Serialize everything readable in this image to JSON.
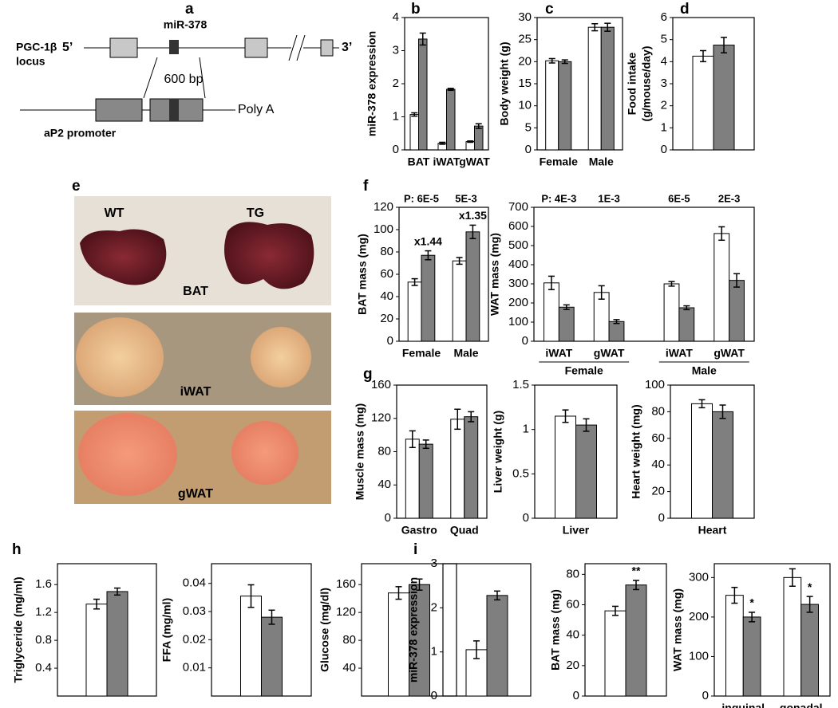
{
  "panel_labels": [
    "a",
    "b",
    "c",
    "d",
    "e",
    "f",
    "g",
    "h",
    "i"
  ],
  "diagram": {
    "locus_name": "PGC-1β",
    "five_prime": "5’",
    "locus": "locus",
    "mirna": "miR-378",
    "three_prime": "3’",
    "fragment": "600 bp",
    "promoter": "aP2 promoter",
    "polya": "Poly A"
  },
  "photos": {
    "wt": "WT",
    "tg": "TG",
    "rows": [
      "BAT",
      "iWAT",
      "gWAT"
    ]
  },
  "chart_data": [
    {
      "type": "bar",
      "y_label": [
        "miR-378 expression"
      ],
      "categories": [
        "BAT",
        "iWAT",
        "gWAT"
      ],
      "series": [
        {
          "color": "#ffffff",
          "values": [
            1.07,
            0.2,
            0.25
          ],
          "errors": [
            0.05,
            0.03,
            0.02
          ]
        },
        {
          "color": "#7f7f7f",
          "values": [
            3.35,
            1.83,
            0.72
          ],
          "errors": [
            0.18,
            0.03,
            0.07
          ]
        }
      ],
      "ylim": [
        0,
        4
      ],
      "yticks": [
        0,
        1,
        2,
        3,
        4
      ]
    },
    {
      "type": "bar",
      "y_label": [
        "Body weight (g)"
      ],
      "categories": [
        "Female",
        "Male"
      ],
      "series": [
        {
          "color": "#ffffff",
          "values": [
            20.2,
            27.8
          ],
          "errors": [
            0.5,
            0.8
          ]
        },
        {
          "color": "#7f7f7f",
          "values": [
            20.0,
            27.8
          ],
          "errors": [
            0.4,
            0.9
          ]
        }
      ],
      "ylim": [
        0,
        30
      ],
      "yticks": [
        0,
        5,
        10,
        15,
        20,
        25,
        30
      ]
    },
    {
      "type": "bar",
      "y_label": [
        "Food intake",
        "(g/mouse/day)"
      ],
      "categories": [
        null
      ],
      "series": [
        {
          "color": "#ffffff",
          "values": [
            4.25
          ],
          "errors": [
            0.25
          ]
        },
        {
          "color": "#7f7f7f",
          "values": [
            4.75
          ],
          "errors": [
            0.35
          ]
        }
      ],
      "ylim": [
        0,
        6
      ],
      "yticks": [
        0,
        1,
        2,
        3,
        4,
        5,
        6
      ]
    },
    {
      "type": "bar",
      "y_label": [
        "BAT mass (mg)"
      ],
      "categories": [
        "Female",
        "Male"
      ],
      "series": [
        {
          "color": "#ffffff",
          "values": [
            53,
            72
          ],
          "errors": [
            3,
            3
          ]
        },
        {
          "color": "#7f7f7f",
          "values": [
            77,
            98
          ],
          "errors": [
            4,
            6
          ]
        }
      ],
      "ylim": [
        0,
        120
      ],
      "yticks": [
        0,
        20,
        40,
        60,
        80,
        100,
        120
      ],
      "p_values": [
        "P: 6E-5",
        "5E-3"
      ],
      "marks": [
        "x1.44",
        "x1.35"
      ]
    },
    {
      "type": "bar",
      "y_label": [
        "WAT mass (mg)"
      ],
      "categories": [
        "iWAT",
        "gWAT",
        "iWAT",
        "gWAT"
      ],
      "groups": [
        "Female",
        "Male"
      ],
      "series": [
        {
          "color": "#ffffff",
          "values": [
            305,
            255,
            300,
            563
          ],
          "errors": [
            35,
            35,
            12,
            35
          ]
        },
        {
          "color": "#7f7f7f",
          "values": [
            178,
            103,
            175,
            318
          ],
          "errors": [
            12,
            10,
            10,
            35
          ]
        }
      ],
      "ylim": [
        0,
        700
      ],
      "yticks": [
        0,
        100,
        200,
        300,
        400,
        500,
        600,
        700
      ],
      "p_values": [
        "P: 4E-3",
        "1E-3",
        "6E-5",
        "2E-3"
      ]
    },
    {
      "type": "bar",
      "y_label": [
        "Muscle mass (mg)"
      ],
      "categories": [
        "Gastro",
        "Quad"
      ],
      "series": [
        {
          "color": "#ffffff",
          "values": [
            95,
            119
          ],
          "errors": [
            10,
            12
          ]
        },
        {
          "color": "#7f7f7f",
          "values": [
            89,
            122
          ],
          "errors": [
            5,
            6
          ]
        }
      ],
      "ylim": [
        0,
        160
      ],
      "yticks": [
        0,
        40,
        80,
        120,
        160
      ]
    },
    {
      "type": "bar",
      "y_label": [
        "Liver weight (g)"
      ],
      "categories": [
        "Liver"
      ],
      "series": [
        {
          "color": "#ffffff",
          "values": [
            1.15
          ],
          "errors": [
            0.07
          ]
        },
        {
          "color": "#7f7f7f",
          "values": [
            1.05
          ],
          "errors": [
            0.07
          ]
        }
      ],
      "ylim": [
        0,
        1.5
      ],
      "yticks": [
        0,
        0.5,
        1,
        1.5
      ]
    },
    {
      "type": "bar",
      "y_label": [
        "Heart weight (mg)"
      ],
      "categories": [
        "Heart"
      ],
      "series": [
        {
          "color": "#ffffff",
          "values": [
            86
          ],
          "errors": [
            3
          ]
        },
        {
          "color": "#7f7f7f",
          "values": [
            80
          ],
          "errors": [
            5
          ]
        }
      ],
      "ylim": [
        0,
        100
      ],
      "yticks": [
        0,
        20,
        40,
        60,
        80,
        100
      ]
    },
    {
      "type": "bar",
      "y_label": [
        "Triglyceride  (mg/ml)"
      ],
      "categories": [
        null
      ],
      "series": [
        {
          "color": "#ffffff",
          "values": [
            1.32
          ],
          "errors": [
            0.07
          ]
        },
        {
          "color": "#7f7f7f",
          "values": [
            1.5
          ],
          "errors": [
            0.05
          ]
        }
      ],
      "ylim": [
        0,
        1.9
      ],
      "yticks": [
        0.4,
        0.8,
        1.2,
        1.6
      ]
    },
    {
      "type": "bar",
      "y_label": [
        "FFA (mg/ml)"
      ],
      "categories": [
        null
      ],
      "series": [
        {
          "color": "#ffffff",
          "values": [
            0.0355
          ],
          "errors": [
            0.004
          ]
        },
        {
          "color": "#7f7f7f",
          "values": [
            0.028
          ],
          "errors": [
            0.0025
          ]
        }
      ],
      "ylim": [
        0,
        0.047
      ],
      "yticks": [
        0.01,
        0.02,
        0.03,
        0.04
      ]
    },
    {
      "type": "bar",
      "y_label": [
        "Glucose  (mg/dl)"
      ],
      "categories": [
        null
      ],
      "series": [
        {
          "color": "#ffffff",
          "values": [
            148
          ],
          "errors": [
            9
          ]
        },
        {
          "color": "#7f7f7f",
          "values": [
            160
          ],
          "errors": [
            8
          ]
        }
      ],
      "ylim": [
        0,
        190
      ],
      "yticks": [
        40,
        80,
        120,
        160
      ]
    },
    {
      "type": "bar",
      "y_label": [
        "miR-378 expression"
      ],
      "categories": [
        null
      ],
      "series": [
        {
          "color": "#ffffff",
          "values": [
            1.05
          ],
          "errors": [
            0.2
          ]
        },
        {
          "color": "#7f7f7f",
          "values": [
            2.28
          ],
          "errors": [
            0.1
          ]
        }
      ],
      "ylim": [
        0,
        3
      ],
      "yticks": [
        0,
        1,
        2,
        3
      ]
    },
    {
      "type": "bar",
      "y_label": [
        "BAT mass (mg)"
      ],
      "categories": [
        null
      ],
      "series": [
        {
          "color": "#ffffff",
          "values": [
            56
          ],
          "errors": [
            3
          ]
        },
        {
          "color": "#7f7f7f",
          "values": [
            73
          ],
          "errors": [
            3
          ]
        }
      ],
      "ylim": [
        0,
        87
      ],
      "yticks": [
        0,
        20,
        40,
        60,
        80
      ],
      "marks": [
        "**"
      ]
    },
    {
      "type": "bar",
      "y_label": [
        "WAT mass (mg)"
      ],
      "categories": [
        "inguinal",
        "gonadal"
      ],
      "series": [
        {
          "color": "#ffffff",
          "values": [
            255,
            300
          ],
          "errors": [
            20,
            22
          ]
        },
        {
          "color": "#7f7f7f",
          "values": [
            200,
            232
          ],
          "errors": [
            12,
            20
          ]
        }
      ],
      "ylim": [
        0,
        335
      ],
      "yticks": [
        0,
        100,
        200,
        300
      ],
      "marks": [
        "*",
        "*"
      ]
    }
  ]
}
